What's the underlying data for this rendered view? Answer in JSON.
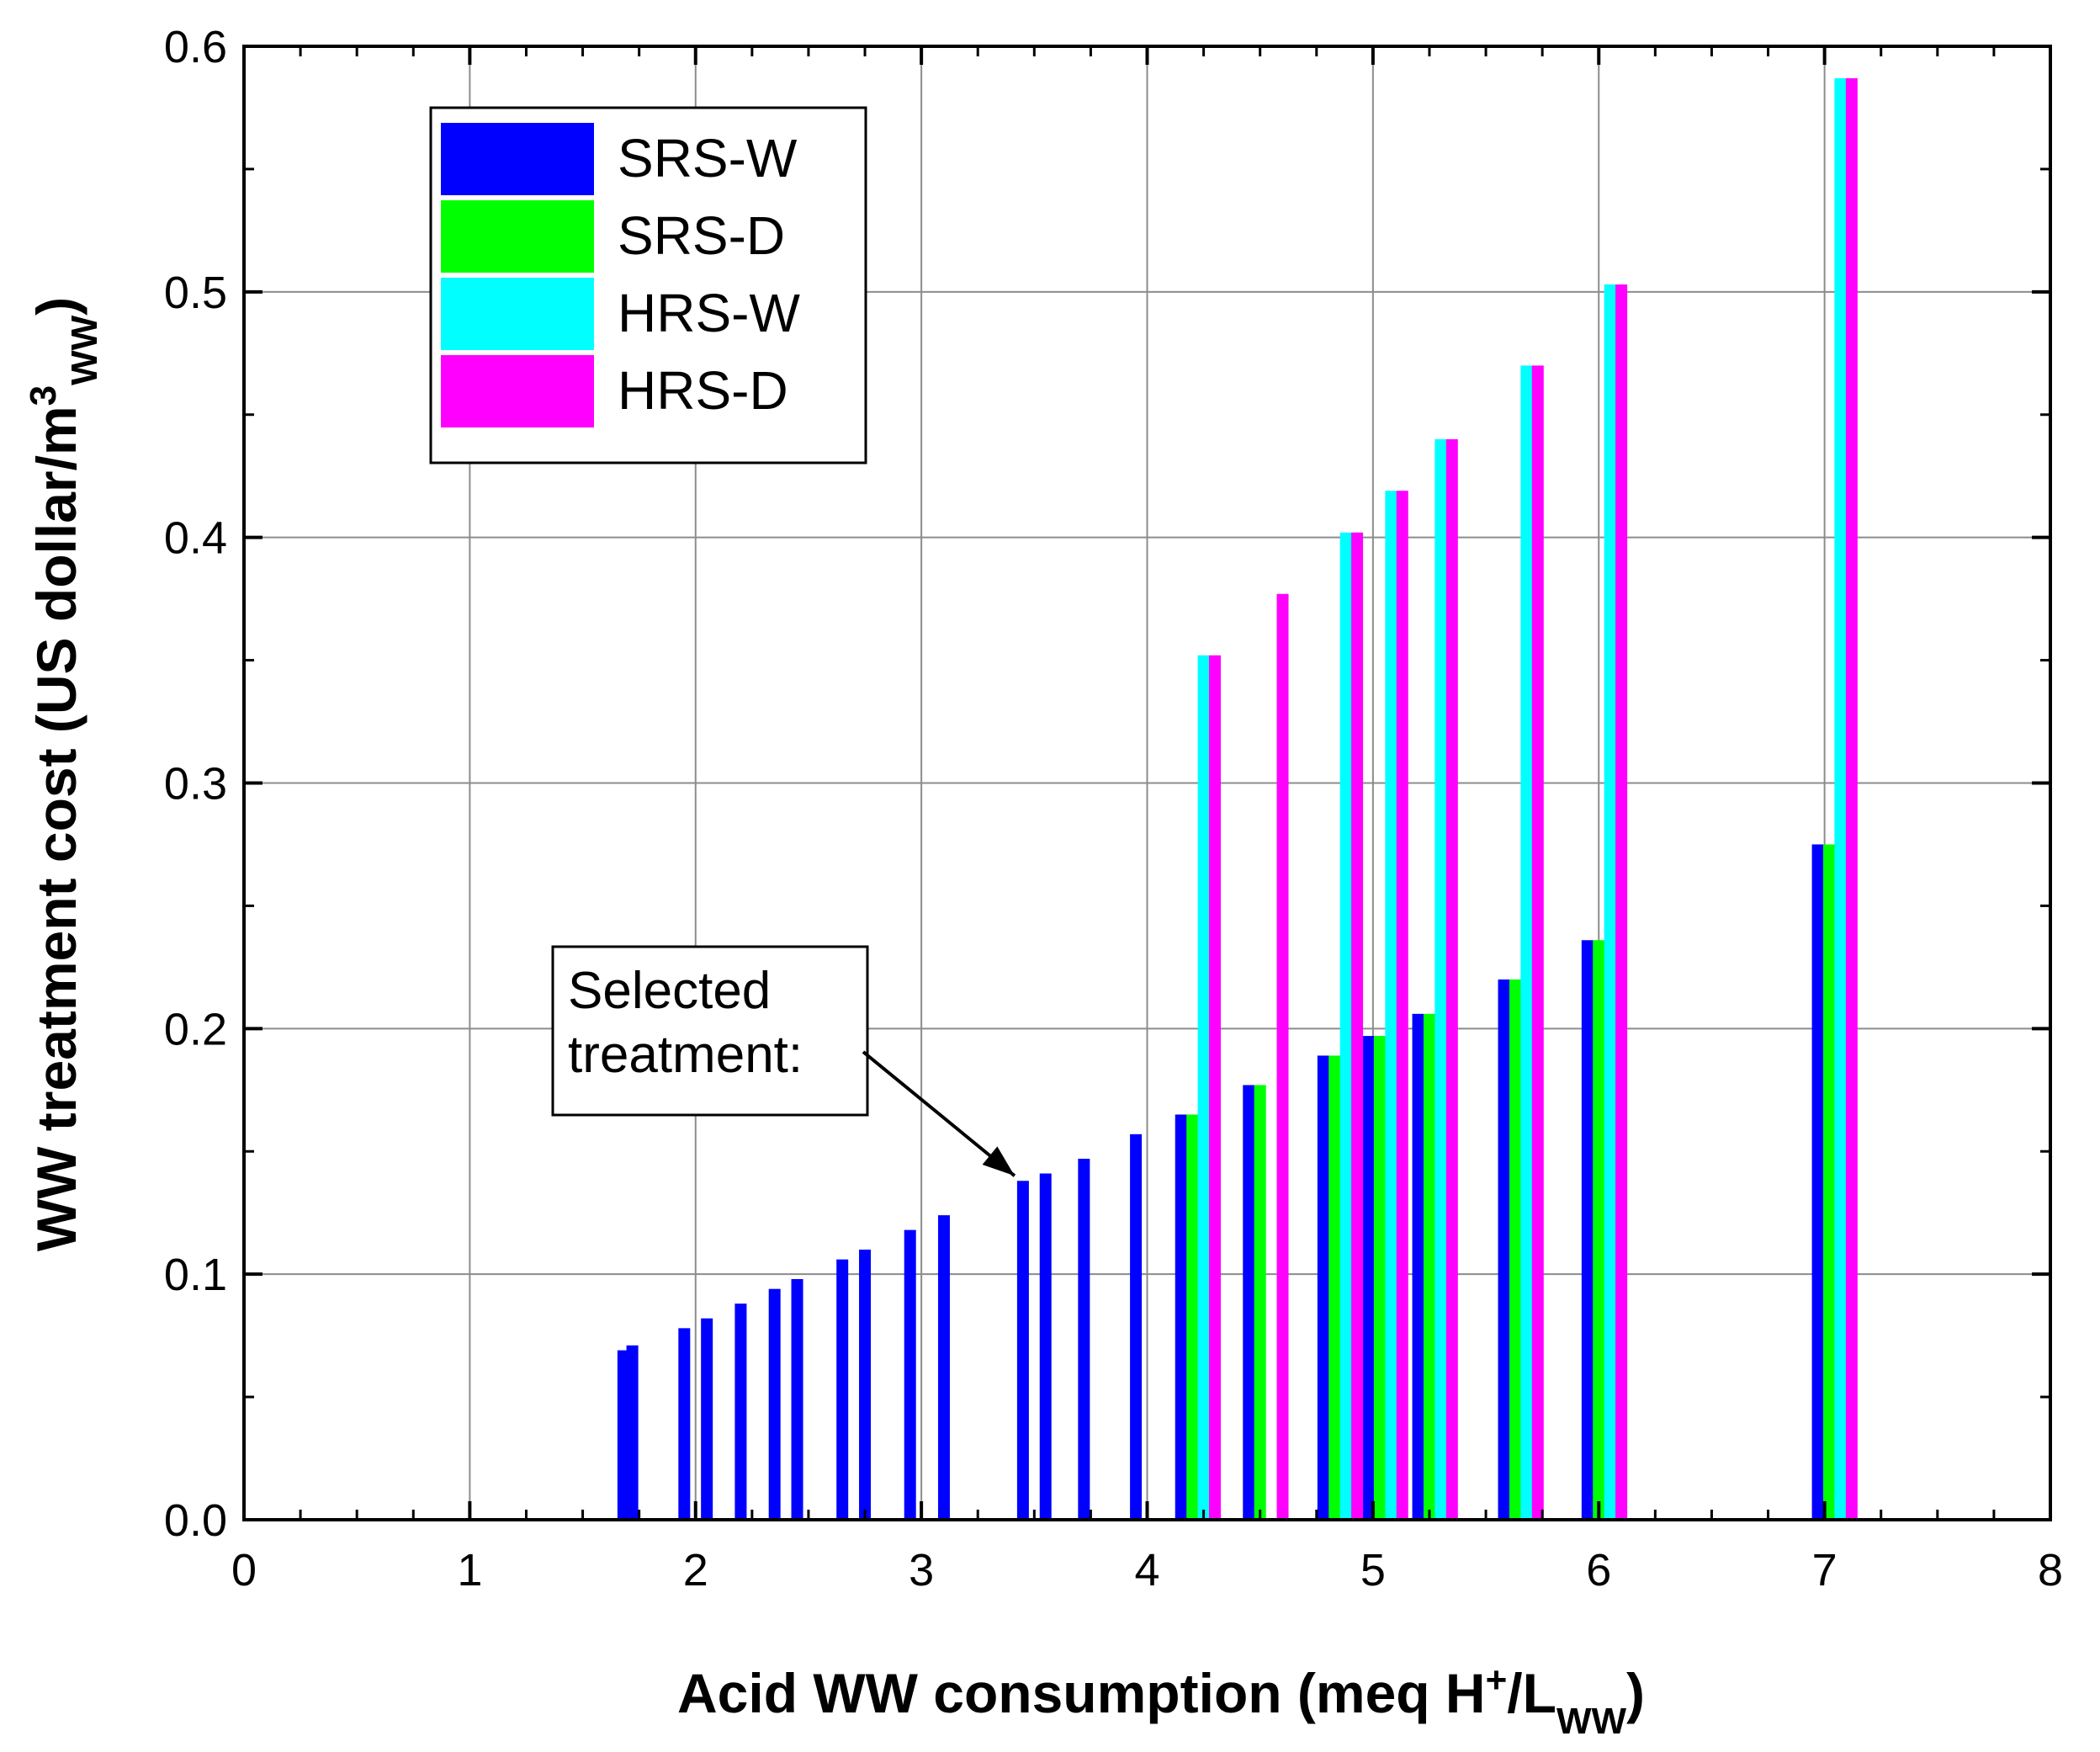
{
  "chart_data": {
    "type": "bar",
    "title": "",
    "xlabel": {
      "main": "Acid WW consumption (meq H",
      "sup": "+",
      "mid": "/L",
      "sub": "WW",
      "end": ")"
    },
    "ylabel": {
      "main": "WW treatment cost (US dollar/m",
      "sup": "3",
      "sub": "WW",
      "end": ")"
    },
    "xlim": [
      0,
      8
    ],
    "ylim": [
      0,
      0.6
    ],
    "xticks": [
      "0",
      "1",
      "2",
      "3",
      "4",
      "5",
      "6",
      "7",
      "8"
    ],
    "yticks": [
      "0.0",
      "0.1",
      "0.2",
      "0.3",
      "0.4",
      "0.5",
      "0.6"
    ],
    "grid": true,
    "legend_position": "top-left",
    "series": [
      {
        "name": "SRS-W",
        "color": "#0000FF",
        "points": [
          {
            "x": 1.68,
            "y": 0.069
          },
          {
            "x": 1.72,
            "y": 0.071
          },
          {
            "x": 1.95,
            "y": 0.078
          },
          {
            "x": 2.05,
            "y": 0.082
          },
          {
            "x": 2.2,
            "y": 0.088
          },
          {
            "x": 2.35,
            "y": 0.094
          },
          {
            "x": 2.45,
            "y": 0.098
          },
          {
            "x": 2.65,
            "y": 0.106
          },
          {
            "x": 2.75,
            "y": 0.11
          },
          {
            "x": 2.95,
            "y": 0.118
          },
          {
            "x": 3.1,
            "y": 0.124
          },
          {
            "x": 3.45,
            "y": 0.138
          },
          {
            "x": 3.55,
            "y": 0.141
          },
          {
            "x": 3.72,
            "y": 0.147
          },
          {
            "x": 3.95,
            "y": 0.157
          },
          {
            "x": 4.15,
            "y": 0.165
          },
          {
            "x": 4.45,
            "y": 0.177
          },
          {
            "x": 4.78,
            "y": 0.189
          },
          {
            "x": 4.98,
            "y": 0.197
          },
          {
            "x": 5.2,
            "y": 0.206
          },
          {
            "x": 5.58,
            "y": 0.22
          },
          {
            "x": 5.95,
            "y": 0.236
          },
          {
            "x": 6.97,
            "y": 0.275
          }
        ]
      },
      {
        "name": "SRS-D",
        "color": "#00FF00",
        "points": [
          {
            "x": 4.2,
            "y": 0.165
          },
          {
            "x": 4.5,
            "y": 0.177
          },
          {
            "x": 4.83,
            "y": 0.189
          },
          {
            "x": 5.03,
            "y": 0.197
          },
          {
            "x": 5.25,
            "y": 0.206
          },
          {
            "x": 5.63,
            "y": 0.22
          },
          {
            "x": 6.0,
            "y": 0.236
          },
          {
            "x": 7.02,
            "y": 0.275
          }
        ]
      },
      {
        "name": "HRS-W",
        "color": "#00FFFF",
        "points": [
          {
            "x": 4.25,
            "y": 0.352
          },
          {
            "x": 4.88,
            "y": 0.402
          },
          {
            "x": 5.08,
            "y": 0.419
          },
          {
            "x": 5.3,
            "y": 0.44
          },
          {
            "x": 5.68,
            "y": 0.47
          },
          {
            "x": 6.05,
            "y": 0.503
          },
          {
            "x": 7.07,
            "y": 0.587
          }
        ]
      },
      {
        "name": "HRS-D",
        "color": "#FF00FF",
        "points": [
          {
            "x": 4.3,
            "y": 0.352
          },
          {
            "x": 4.6,
            "y": 0.377
          },
          {
            "x": 4.93,
            "y": 0.402
          },
          {
            "x": 5.13,
            "y": 0.419
          },
          {
            "x": 5.35,
            "y": 0.44
          },
          {
            "x": 5.73,
            "y": 0.47
          },
          {
            "x": 6.1,
            "y": 0.503
          },
          {
            "x": 7.12,
            "y": 0.587
          }
        ]
      }
    ],
    "annotation": {
      "lines": [
        "Selected",
        "treatment:"
      ],
      "points_to": {
        "x": 3.45,
        "y": 0.138
      }
    }
  }
}
